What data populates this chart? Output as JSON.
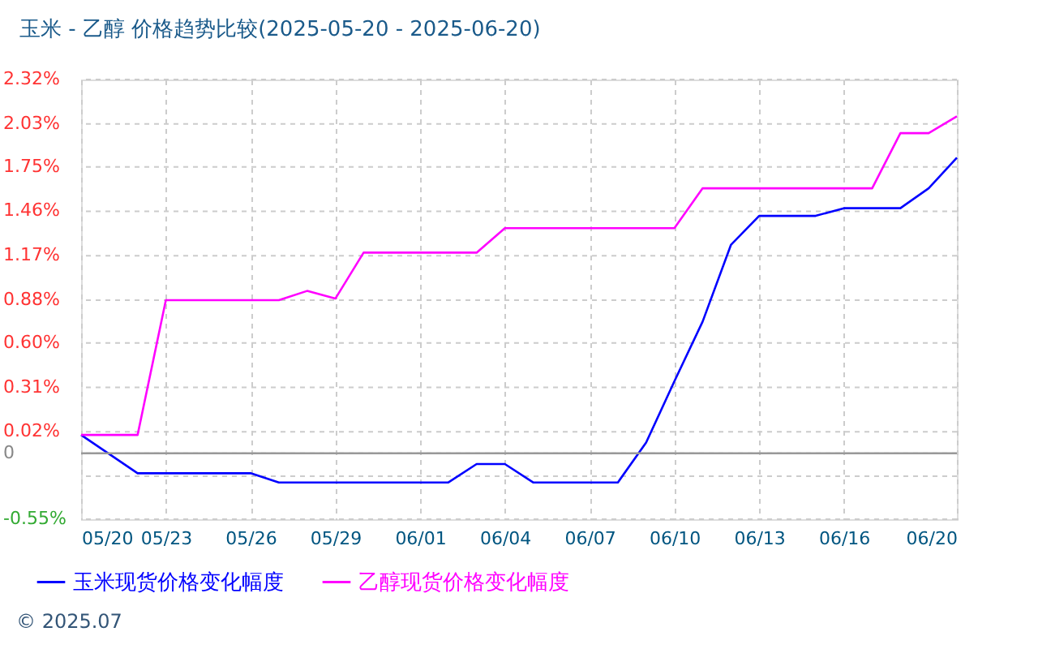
{
  "chart_data": {
    "type": "line",
    "title": "玉米 - 乙醇 价格趋势比较(2025-05-20 - 2025-06-20)",
    "series": [
      {
        "name": "玉米现货价格变化幅度",
        "color": "#0000ff",
        "x": [
          "2025-05-20",
          "2025-05-22",
          "2025-05-26",
          "2025-05-27",
          "2025-06-02",
          "2025-06-03",
          "2025-06-04",
          "2025-06-05",
          "2025-06-08",
          "2025-06-09",
          "2025-06-10",
          "2025-06-11",
          "2025-06-12",
          "2025-06-13",
          "2025-06-15",
          "2025-06-16",
          "2025-06-18",
          "2025-06-19",
          "2025-06-20"
        ],
        "values": [
          0.0,
          -0.25,
          -0.25,
          -0.31,
          -0.31,
          -0.19,
          -0.19,
          -0.31,
          -0.31,
          -0.05,
          0.35,
          0.74,
          1.24,
          1.43,
          1.43,
          1.48,
          1.48,
          1.61,
          1.81
        ]
      },
      {
        "name": "乙醇现货价格变化幅度",
        "color": "#ff00ff",
        "x": [
          "2025-05-20",
          "2025-05-22",
          "2025-05-23",
          "2025-05-27",
          "2025-05-28",
          "2025-05-29",
          "2025-05-30",
          "2025-06-03",
          "2025-06-04",
          "2025-06-10",
          "2025-06-11",
          "2025-06-17",
          "2025-06-18",
          "2025-06-19",
          "2025-06-20"
        ],
        "values": [
          0.0,
          0.0,
          0.88,
          0.88,
          0.94,
          0.89,
          1.19,
          1.19,
          1.35,
          1.35,
          1.61,
          1.61,
          1.97,
          1.97,
          2.08
        ]
      }
    ],
    "xlim": [
      "2025-05-20",
      "2025-06-20"
    ],
    "xticks": [
      {
        "value": "2025-05-20",
        "label": "05/20"
      },
      {
        "value": "2025-05-23",
        "label": "05/23"
      },
      {
        "value": "2025-05-26",
        "label": "05/26"
      },
      {
        "value": "2025-05-29",
        "label": "05/29"
      },
      {
        "value": "2025-06-01",
        "label": "06/01"
      },
      {
        "value": "2025-06-04",
        "label": "06/04"
      },
      {
        "value": "2025-06-07",
        "label": "06/07"
      },
      {
        "value": "2025-06-10",
        "label": "06/10"
      },
      {
        "value": "2025-06-13",
        "label": "06/13"
      },
      {
        "value": "2025-06-16",
        "label": "06/16"
      },
      {
        "value": "2025-06-20",
        "label": "06/20"
      }
    ],
    "ylim": [
      -0.55,
      2.32
    ],
    "yticks": [
      {
        "value": 2.32,
        "label": "2.32%"
      },
      {
        "value": 2.03,
        "label": "2.03%"
      },
      {
        "value": 1.75,
        "label": "1.75%"
      },
      {
        "value": 1.46,
        "label": "1.46%"
      },
      {
        "value": 1.17,
        "label": "1.17%"
      },
      {
        "value": 0.88,
        "label": "0.88%"
      },
      {
        "value": 0.6,
        "label": "0.60%"
      },
      {
        "value": 0.31,
        "label": "0.31%"
      },
      {
        "value": 0.02,
        "label": "0.02%"
      },
      {
        "value": -0.12,
        "label": "0"
      },
      {
        "value": -0.27,
        "label": null
      },
      {
        "value": -0.55,
        "label": "-0.55%"
      }
    ],
    "ref_lines": [
      {
        "axis": "y",
        "value": -0.12,
        "color": "#999999",
        "line_style": "solid"
      }
    ],
    "grid": true,
    "legend": "bottom left",
    "line_style": "solid",
    "marker": "none",
    "annotations": [
      "© 2025.07"
    ]
  }
}
